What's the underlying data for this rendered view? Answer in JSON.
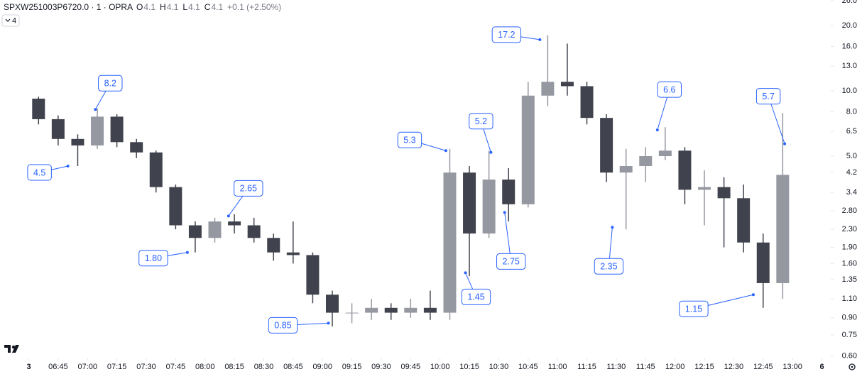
{
  "header": {
    "symbol": "SPXW251003P6720.0 · 1 · OPRA",
    "ohlc_labels": [
      "O",
      "H",
      "L",
      "C"
    ],
    "open": 4.1,
    "high": 4.1,
    "low": 4.1,
    "close": 4.1,
    "change": "+0.1 (+2.50%)",
    "indicator_count": 4
  },
  "chart_data": {
    "type": "candlestick",
    "log_scale": true,
    "up_color": "#9598a1",
    "down_color": "#40434d",
    "x": [
      "06:30",
      "06:40",
      "06:50",
      "07:00",
      "07:10",
      "07:20",
      "07:30",
      "07:40",
      "07:50",
      "08:00",
      "08:10",
      "08:20",
      "08:30",
      "08:40",
      "08:50",
      "09:00",
      "09:10",
      "09:20",
      "09:30",
      "09:40",
      "09:50",
      "10:00",
      "10:10",
      "10:20",
      "10:30",
      "10:40",
      "10:50",
      "11:00",
      "11:10",
      "11:20",
      "11:30",
      "11:40",
      "11:50",
      "12:00",
      "12:10",
      "12:20",
      "12:30",
      "12:40",
      "12:50"
    ],
    "open": [
      9.2,
      7.4,
      6.0,
      5.6,
      7.6,
      5.8,
      5.2,
      3.6,
      2.4,
      2.1,
      2.5,
      2.4,
      2.1,
      1.8,
      1.75,
      1.15,
      0.95,
      0.95,
      1.0,
      0.95,
      1.0,
      0.95,
      4.2,
      2.2,
      3.9,
      3.0,
      9.5,
      11,
      10.5,
      7.5,
      4.2,
      4.5,
      5.0,
      5.3,
      3.5,
      3.6,
      3.2,
      2.0,
      1.3
    ],
    "high": [
      9.4,
      7.7,
      6.3,
      8.3,
      7.8,
      6.0,
      5.3,
      3.7,
      2.5,
      2.6,
      2.7,
      2.6,
      2.2,
      2.5,
      1.8,
      1.2,
      1.05,
      1.1,
      1.05,
      1.1,
      1.2,
      5.4,
      4.5,
      5.3,
      4.4,
      11,
      18,
      16.5,
      11,
      7.8,
      5.4,
      5.5,
      6.8,
      5.5,
      4.3,
      4.0,
      3.7,
      2.2,
      7.9
    ],
    "low": [
      7.0,
      5.6,
      4.5,
      5.4,
      5.5,
      4.9,
      3.4,
      2.3,
      1.8,
      2.0,
      2.2,
      2.0,
      1.65,
      1.6,
      1.05,
      0.82,
      0.85,
      0.88,
      0.88,
      0.9,
      0.88,
      0.88,
      1.4,
      2.1,
      2.5,
      2.9,
      8.5,
      9.5,
      7.0,
      3.8,
      2.3,
      3.8,
      4.8,
      3.0,
      2.4,
      1.9,
      1.8,
      1.0,
      1.1
    ],
    "close": [
      7.4,
      6.0,
      5.6,
      7.6,
      5.8,
      5.2,
      3.6,
      2.4,
      2.1,
      2.5,
      2.4,
      2.1,
      1.8,
      1.75,
      1.15,
      0.95,
      0.95,
      1.0,
      0.95,
      1.0,
      0.95,
      4.2,
      2.2,
      3.9,
      3.0,
      9.5,
      11,
      10.5,
      7.5,
      4.2,
      4.5,
      5.0,
      5.3,
      3.5,
      3.6,
      3.2,
      2.0,
      1.3,
      4.1
    ],
    "ylim": [
      0.585,
      26.2
    ],
    "yticks": [
      {
        "value": 26,
        "label": "26.0"
      },
      {
        "value": 20,
        "label": "20.0"
      },
      {
        "value": 16,
        "label": "16.0"
      },
      {
        "value": 13,
        "label": "13.0"
      },
      {
        "value": 10,
        "label": "10.0"
      },
      {
        "value": 8,
        "label": "8.0"
      },
      6.5,
      {
        "value": 5,
        "label": "5.0"
      },
      4.2,
      3.4,
      {
        "value": 2.8,
        "label": "2.80"
      },
      {
        "value": 2.3,
        "label": "2.30"
      },
      {
        "value": 1.9,
        "label": "1.90"
      },
      {
        "value": 1.6,
        "label": "1.60"
      },
      1.35,
      {
        "value": 1.1,
        "label": "1.10"
      },
      {
        "value": 0.9,
        "label": "0.90"
      },
      0.75,
      {
        "value": 0.6,
        "label": "0.60"
      }
    ],
    "xlim": [
      "06:30",
      "13:15"
    ],
    "xticks": [
      {
        "value": "06:30",
        "label": "3"
      },
      "06:45",
      "07:00",
      "07:15",
      "07:30",
      "07:45",
      "08:00",
      "08:15",
      "08:30",
      "08:45",
      "09:00",
      "09:15",
      "09:30",
      "09:45",
      "10:00",
      "10:15",
      "10:30",
      "10:45",
      "11:00",
      "11:15",
      "11:30",
      "11:45",
      "12:00",
      "12:15",
      "12:30",
      "12:45",
      "13:00",
      {
        "value": "13:15",
        "label": "6"
      }
    ],
    "annotations": [
      {
        "time": "06:50",
        "value": 4.5,
        "label": "4.5"
      },
      {
        "time": "07:04",
        "value": 8.2,
        "label": "8.2"
      },
      {
        "time": "07:51",
        "value": 1.8,
        "label": "1.80"
      },
      {
        "time": "08:12",
        "value": 2.65,
        "label": "2.65"
      },
      {
        "time": "09:03",
        "value": 0.85,
        "label": "0.85"
      },
      {
        "time": "10:03",
        "value": 5.3,
        "label": "5.3"
      },
      {
        "time": "10:13",
        "value": 1.45,
        "label": "1.45"
      },
      {
        "time": "10:26",
        "value": 5.2,
        "label": "5.2"
      },
      {
        "time": "10:33",
        "value": 2.75,
        "label": "2.75"
      },
      {
        "time": "10:51",
        "value": 17.2,
        "label": "17.2"
      },
      {
        "time": "11:28",
        "value": 2.35,
        "label": "2.35"
      },
      {
        "time": "11:51",
        "value": 6.6,
        "label": "6.6"
      },
      {
        "time": "12:40",
        "value": 1.15,
        "label": "1.15"
      },
      {
        "time": "12:56",
        "value": 5.7,
        "label": "5.7"
      }
    ]
  }
}
